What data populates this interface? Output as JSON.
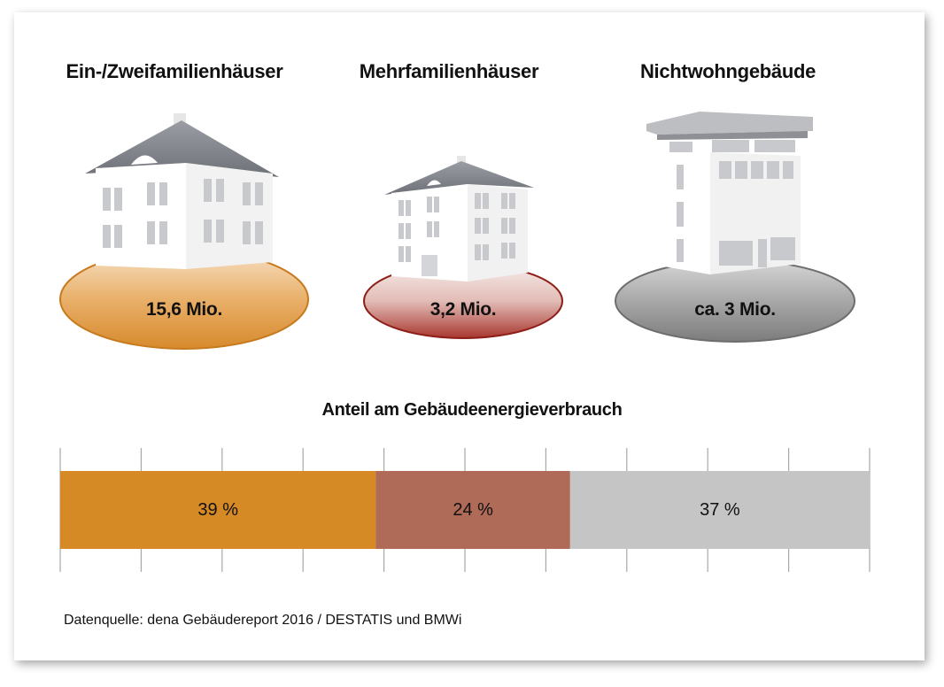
{
  "buildings": [
    {
      "name": "Ein-/Zweifamilienhäuser",
      "count": "15,6 Mio.",
      "color": "#D78A2C",
      "icon": "detached-house-icon"
    },
    {
      "name": "Mehrfamilienhäuser",
      "count": "3,2 Mio.",
      "color": "#9E2A24",
      "icon": "apartment-house-icon"
    },
    {
      "name": "Nichtwohngebäude",
      "count": "ca. 3 Mio.",
      "color": "#7F7F7F",
      "icon": "office-building-icon"
    }
  ],
  "chart_data": {
    "type": "bar",
    "orientation": "horizontal-stacked",
    "title": "Anteil am Gebäudeenergieverbrauch",
    "series": [
      {
        "name": "Ein-/Zweifamilienhäuser",
        "value": 39,
        "label": "39 %",
        "color": "#D58A26"
      },
      {
        "name": "Mehrfamilienhäuser",
        "value": 24,
        "label": "24 %",
        "color": "#AF6A58"
      },
      {
        "name": "Nichtwohngebäude",
        "value": 37,
        "label": "37 %",
        "color": "#C4C5C4"
      }
    ],
    "xlim": [
      0,
      100
    ],
    "grid": true
  },
  "source": "Datenquelle: dena Gebäudereport 2016 / DESTATIS und BMWi"
}
